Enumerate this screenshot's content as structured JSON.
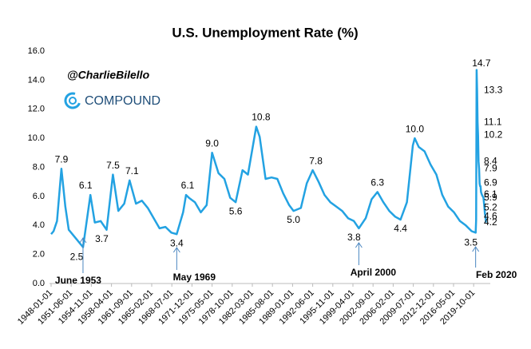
{
  "chart_data": {
    "type": "line",
    "title": "U.S. Unemployment Rate (%)",
    "handle": "@CharlieBilello",
    "brand": "COMPOUND",
    "series": [
      {
        "name": "Unemployment Rate",
        "color": "#23a2e2",
        "x": [
          "1948-01-01",
          "1948-06-01",
          "1949-01-01",
          "1949-10-01",
          "1950-06-01",
          "1951-01-01",
          "1952-06-01",
          "1953-06-01",
          "1954-09-01",
          "1955-06-01",
          "1956-06-01",
          "1957-06-01",
          "1958-07-01",
          "1959-06-01",
          "1960-06-01",
          "1961-05-01",
          "1962-06-01",
          "1963-06-01",
          "1964-06-01",
          "1965-06-01",
          "1966-06-01",
          "1967-06-01",
          "1968-06-01",
          "1969-05-01",
          "1970-06-01",
          "1970-12-01",
          "1971-06-01",
          "1972-06-01",
          "1973-06-01",
          "1974-06-01",
          "1975-05-01",
          "1976-06-01",
          "1977-06-01",
          "1978-06-01",
          "1979-05-01",
          "1980-07-01",
          "1981-06-01",
          "1982-11-01",
          "1983-06-01",
          "1984-06-01",
          "1985-06-01",
          "1986-06-01",
          "1987-06-01",
          "1988-06-01",
          "1989-03-01",
          "1990-06-01",
          "1991-06-01",
          "1992-06-01",
          "1993-06-01",
          "1994-06-01",
          "1995-06-01",
          "1996-06-01",
          "1997-06-01",
          "1998-06-01",
          "1999-06-01",
          "2000-04-01",
          "2001-06-01",
          "2002-06-01",
          "2003-06-01",
          "2004-06-01",
          "2005-06-01",
          "2006-06-01",
          "2007-05-01",
          "2008-06-01",
          "2009-06-01",
          "2009-10-01",
          "2010-06-01",
          "2011-06-01",
          "2012-06-01",
          "2013-06-01",
          "2014-06-01",
          "2015-06-01",
          "2016-06-01",
          "2017-06-01",
          "2018-06-01",
          "2019-06-01",
          "2020-02-01",
          "2020-03-01",
          "2020-04-01",
          "2020-05-01",
          "2020-06-01",
          "2020-07-01",
          "2020-08-01",
          "2020-09-01",
          "2020-10-01",
          "2020-11-01",
          "2020-12-01",
          "2021-01-01",
          "2021-03-01",
          "2021-06-01",
          "2021-08-01",
          "2021-09-01",
          "2021-10-01",
          "2021-11-01"
        ],
        "values": [
          3.4,
          3.6,
          4.3,
          7.9,
          5.3,
          3.7,
          3.0,
          2.5,
          6.1,
          4.2,
          4.3,
          3.7,
          7.5,
          5.0,
          5.5,
          7.1,
          5.5,
          5.7,
          5.2,
          4.5,
          3.8,
          3.9,
          3.5,
          3.4,
          4.9,
          6.1,
          5.9,
          5.6,
          4.9,
          5.4,
          9.0,
          7.6,
          7.2,
          5.9,
          5.6,
          7.8,
          7.5,
          10.8,
          10.1,
          7.2,
          7.3,
          7.2,
          6.2,
          5.4,
          5.0,
          5.2,
          6.9,
          7.8,
          7.0,
          6.1,
          5.6,
          5.3,
          5.0,
          4.5,
          4.3,
          3.8,
          4.5,
          5.8,
          6.3,
          5.6,
          5.0,
          4.6,
          4.4,
          5.6,
          9.5,
          10.0,
          9.4,
          9.1,
          8.2,
          7.5,
          6.1,
          5.3,
          4.9,
          4.3,
          4.0,
          3.6,
          3.5,
          4.4,
          14.7,
          13.3,
          11.1,
          10.2,
          8.4,
          7.9,
          6.9,
          6.7,
          6.7,
          6.3,
          6.1,
          5.9,
          5.2,
          4.8,
          4.6,
          4.2
        ]
      }
    ],
    "point_labels": [
      {
        "x": "1949-10-01",
        "value": 7.9,
        "label": "7.9"
      },
      {
        "x": "1953-06-01",
        "value": 2.5,
        "label": "2.5"
      },
      {
        "x": "1954-09-01",
        "value": 6.1,
        "label": "6.1"
      },
      {
        "x": "1957-06-01",
        "value": 3.7,
        "label": "3.7"
      },
      {
        "x": "1958-07-01",
        "value": 7.5,
        "label": "7.5"
      },
      {
        "x": "1961-05-01",
        "value": 7.1,
        "label": "7.1"
      },
      {
        "x": "1969-05-01",
        "value": 3.4,
        "label": "3.4"
      },
      {
        "x": "1970-12-01",
        "value": 6.1,
        "label": "6.1"
      },
      {
        "x": "1975-05-01",
        "value": 9.0,
        "label": "9.0"
      },
      {
        "x": "1979-05-01",
        "value": 5.6,
        "label": "5.6"
      },
      {
        "x": "1982-11-01",
        "value": 10.8,
        "label": "10.8"
      },
      {
        "x": "1989-03-01",
        "value": 5.0,
        "label": "5.0"
      },
      {
        "x": "1992-06-01",
        "value": 7.8,
        "label": "7.8"
      },
      {
        "x": "2000-04-01",
        "value": 3.8,
        "label": "3.8"
      },
      {
        "x": "2003-06-01",
        "value": 6.3,
        "label": "6.3"
      },
      {
        "x": "2007-05-01",
        "value": 4.4,
        "label": "4.4"
      },
      {
        "x": "2009-10-01",
        "value": 10.0,
        "label": "10.0"
      },
      {
        "x": "2020-02-01",
        "value": 3.5,
        "label": "3.5"
      },
      {
        "x": "2020-04-01",
        "value": 14.7,
        "label": "14.7"
      },
      {
        "x": "2020-05-01",
        "value": 13.3,
        "label": "13.3"
      },
      {
        "x": "2020-06-01",
        "value": 11.1,
        "label": "11.1"
      },
      {
        "x": "2020-07-01",
        "value": 10.2,
        "label": "10.2"
      },
      {
        "x": "2020-08-01",
        "value": 8.4,
        "label": "8.4"
      },
      {
        "x": "2020-09-01",
        "value": 7.9,
        "label": "7.9"
      },
      {
        "x": "2020-10-01",
        "value": 6.9,
        "label": "6.9"
      },
      {
        "x": "2021-03-01",
        "value": 6.1,
        "label": "6.1"
      },
      {
        "x": "2021-06-01",
        "value": 5.9,
        "label": "5.9"
      },
      {
        "x": "2021-08-01",
        "value": 5.2,
        "label": "5.2"
      },
      {
        "x": "2021-10-01",
        "value": 4.6,
        "label": "4.6"
      },
      {
        "x": "2021-11-01",
        "value": 4.2,
        "label": "4.2"
      }
    ],
    "annotations": [
      {
        "text": "June 1953",
        "x": "1953-06-01"
      },
      {
        "text": "May 1969",
        "x": "1969-05-01"
      },
      {
        "text": "April 2000",
        "x": "2000-04-01"
      },
      {
        "text": "Feb 2020",
        "x": "2020-02-01"
      }
    ],
    "ylim": [
      0,
      16
    ],
    "yticks": [
      {
        "value": 0,
        "label": "0.0"
      },
      {
        "value": 2,
        "label": "2.0"
      },
      {
        "value": 4,
        "label": "4.0"
      },
      {
        "value": 6,
        "label": "6.0"
      },
      {
        "value": 8,
        "label": "8.0"
      },
      {
        "value": 10,
        "label": "10.0"
      },
      {
        "value": 12,
        "label": "12.0"
      },
      {
        "value": 14,
        "label": "14.0"
      },
      {
        "value": 16,
        "label": "16.0"
      }
    ],
    "xticks": [
      "1948-01-01",
      "1951-06-01",
      "1954-11-01",
      "1958-04-01",
      "1961-09-01",
      "1965-02-01",
      "1968-07-01",
      "1971-12-01",
      "1975-05-01",
      "1978-10-01",
      "1982-03-01",
      "1985-08-01",
      "1989-01-01",
      "1992-06-01",
      "1995-11-01",
      "1999-04-01",
      "2002-09-01",
      "2006-02-01",
      "2009-07-01",
      "2012-12-01",
      "2016-05-01",
      "2019-10-01"
    ],
    "grid": false
  }
}
